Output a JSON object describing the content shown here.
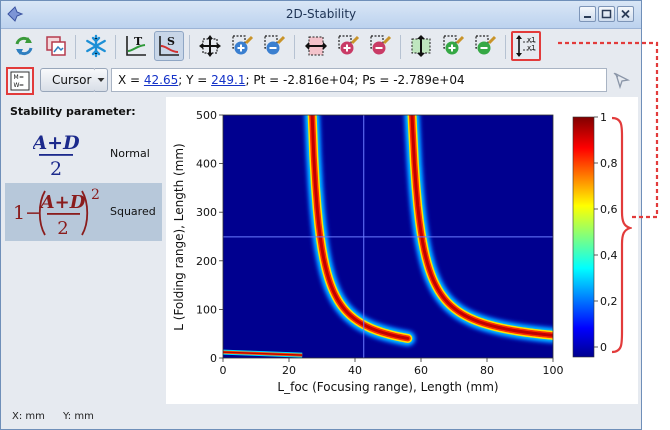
{
  "window": {
    "title": "2D-Stability"
  },
  "toolbar": {
    "icons": [
      "refresh-icon",
      "copy-image-icon",
      "snowflake-icon",
      "plot-t-icon",
      "plot-s-icon",
      "pan-all-icon",
      "zoom-in-both-icon",
      "zoom-out-both-icon",
      "pan-horizontal-icon",
      "zoom-in-horizontal-icon",
      "zoom-out-horizontal-icon",
      "pan-vertical-icon",
      "zoom-in-vertical-icon",
      "zoom-out-vertical-icon",
      "axis-scale-icon"
    ]
  },
  "cursor_bar": {
    "mode_label": "Cursor",
    "x_prefix": "X = ",
    "x_value": "42.65",
    "y_prefix": "; Y = ",
    "y_value": "249.1",
    "rest": "; Pt = -2.816e+04; Ps = -2.789e+04"
  },
  "left_panel": {
    "title": "Stability parameter:",
    "options": [
      {
        "label": "Normal",
        "selected": false
      },
      {
        "label": "Squared",
        "selected": true
      }
    ],
    "formula": {
      "one": "1",
      "minus": "−",
      "numerator": "A+D",
      "denominator": "2",
      "exponent": "2"
    }
  },
  "status": {
    "x_unit": "X: mm",
    "y_unit": "Y: mm"
  },
  "chart_data": {
    "type": "heatmap",
    "xlabel": "L_foc (Focusing range), Length (mm)",
    "ylabel": "L (Folding range), Length (mm)",
    "xlim": [
      0,
      100
    ],
    "ylim": [
      0,
      500
    ],
    "xticks": [
      "0",
      "20",
      "40",
      "60",
      "80",
      "100"
    ],
    "yticks": [
      "0",
      "100",
      "200",
      "300",
      "400",
      "500"
    ],
    "colorbar": {
      "ticks": [
        "0",
        "0,2",
        "0,4",
        "0,6",
        "0,8",
        "1"
      ],
      "range": [
        0,
        1
      ]
    },
    "cursor": {
      "x": 42.65,
      "y": 249.1
    },
    "accent_color": "#e23b3b"
  }
}
